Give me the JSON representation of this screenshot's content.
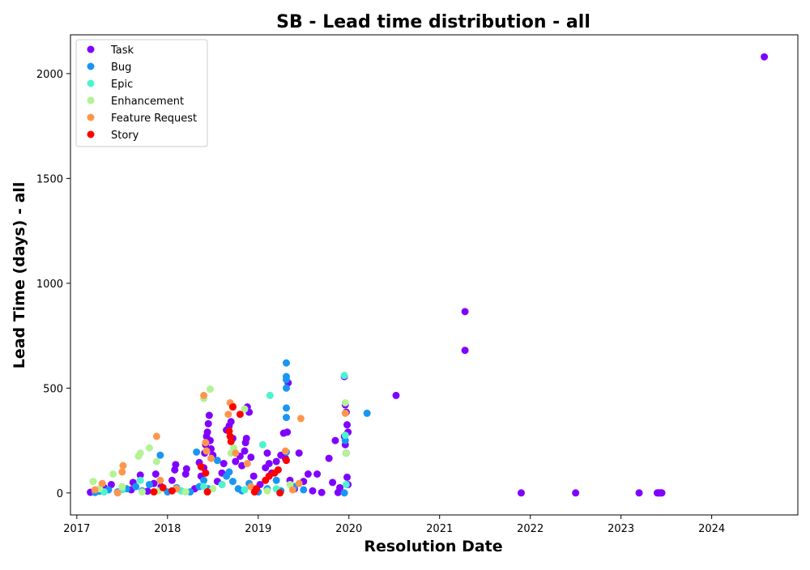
{
  "chart_data": {
    "type": "scatter",
    "title": "SB - Lead time distribution - all",
    "xlabel": "Resolution Date",
    "ylabel": "Lead Time (days) - all",
    "xlim": [
      2016.93,
      2024.95
    ],
    "ylim": [
      -105,
      2185
    ],
    "xticks": [
      2017,
      2018,
      2019,
      2020,
      2021,
      2022,
      2023,
      2024
    ],
    "yticks": [
      0,
      500,
      1000,
      1500,
      2000
    ],
    "grid": false,
    "legend_position": "top-left",
    "series": [
      {
        "name": "Task",
        "color": "#8000ff",
        "points": [
          [
            2017.15,
            3
          ],
          [
            2017.22,
            10
          ],
          [
            2017.3,
            25
          ],
          [
            2017.38,
            40
          ],
          [
            2017.45,
            2
          ],
          [
            2017.6,
            15
          ],
          [
            2017.62,
            50
          ],
          [
            2017.7,
            85
          ],
          [
            2017.78,
            8
          ],
          [
            2017.85,
            45
          ],
          [
            2017.87,
            90
          ],
          [
            2017.93,
            30
          ],
          [
            2018.05,
            60
          ],
          [
            2018.08,
            110
          ],
          [
            2018.09,
            135
          ],
          [
            2018.2,
            90
          ],
          [
            2018.21,
            115
          ],
          [
            2018.3,
            20
          ],
          [
            2018.35,
            145
          ],
          [
            2018.37,
            80
          ],
          [
            2018.4,
            120
          ],
          [
            2018.41,
            190
          ],
          [
            2018.42,
            230
          ],
          [
            2018.43,
            270
          ],
          [
            2018.44,
            290
          ],
          [
            2018.45,
            330
          ],
          [
            2018.46,
            370
          ],
          [
            2018.47,
            250
          ],
          [
            2018.48,
            210
          ],
          [
            2018.5,
            180
          ],
          [
            2018.55,
            55
          ],
          [
            2018.6,
            95
          ],
          [
            2018.62,
            140
          ],
          [
            2018.65,
            300
          ],
          [
            2018.68,
            320
          ],
          [
            2018.7,
            340
          ],
          [
            2018.72,
            260
          ],
          [
            2018.75,
            150
          ],
          [
            2018.8,
            175
          ],
          [
            2018.82,
            130
          ],
          [
            2018.85,
            200
          ],
          [
            2018.86,
            240
          ],
          [
            2018.87,
            260
          ],
          [
            2018.88,
            410
          ],
          [
            2018.9,
            385
          ],
          [
            2018.92,
            170
          ],
          [
            2018.95,
            80
          ],
          [
            2019.02,
            40
          ],
          [
            2019.08,
            120
          ],
          [
            2019.1,
            190
          ],
          [
            2019.12,
            140
          ],
          [
            2019.15,
            95
          ],
          [
            2019.2,
            150
          ],
          [
            2019.25,
            180
          ],
          [
            2019.28,
            285
          ],
          [
            2019.3,
            165
          ],
          [
            2019.32,
            290
          ],
          [
            2019.33,
            525
          ],
          [
            2019.35,
            60
          ],
          [
            2019.4,
            20
          ],
          [
            2019.45,
            190
          ],
          [
            2019.5,
            55
          ],
          [
            2019.55,
            90
          ],
          [
            2019.6,
            10
          ],
          [
            2019.65,
            90
          ],
          [
            2019.7,
            2
          ],
          [
            2019.78,
            165
          ],
          [
            2019.82,
            50
          ],
          [
            2019.85,
            250
          ],
          [
            2019.88,
            2
          ],
          [
            2019.9,
            25
          ],
          [
            2019.95,
            555
          ],
          [
            2019.96,
            420
          ],
          [
            2019.97,
            385
          ],
          [
            2019.98,
            325
          ],
          [
            2019.99,
            290
          ],
          [
            2019.95,
            270
          ],
          [
            2019.96,
            230
          ],
          [
            2019.97,
            190
          ],
          [
            2019.98,
            75
          ],
          [
            2019.99,
            40
          ],
          [
            2020.52,
            465
          ],
          [
            2021.28,
            865
          ],
          [
            2021.28,
            680
          ],
          [
            2021.9,
            0
          ],
          [
            2022.5,
            0
          ],
          [
            2023.2,
            0
          ],
          [
            2023.4,
            0
          ],
          [
            2023.41,
            0
          ],
          [
            2023.42,
            0
          ],
          [
            2023.43,
            0
          ],
          [
            2023.44,
            0
          ],
          [
            2023.45,
            0
          ],
          [
            2024.58,
            2080
          ]
        ]
      },
      {
        "name": "Bug",
        "color": "#1996f3",
        "points": [
          [
            2017.2,
            2
          ],
          [
            2017.25,
            8
          ],
          [
            2017.35,
            15
          ],
          [
            2017.45,
            5
          ],
          [
            2017.55,
            20
          ],
          [
            2017.65,
            30
          ],
          [
            2017.72,
            10
          ],
          [
            2017.8,
            40
          ],
          [
            2017.92,
            180
          ],
          [
            2018.0,
            5
          ],
          [
            2018.1,
            25
          ],
          [
            2018.15,
            10
          ],
          [
            2018.25,
            5
          ],
          [
            2018.32,
            195
          ],
          [
            2018.35,
            30
          ],
          [
            2018.4,
            60
          ],
          [
            2018.45,
            20
          ],
          [
            2018.55,
            155
          ],
          [
            2018.6,
            40
          ],
          [
            2018.65,
            80
          ],
          [
            2018.68,
            100
          ],
          [
            2018.72,
            55
          ],
          [
            2018.78,
            20
          ],
          [
            2018.82,
            10
          ],
          [
            2018.9,
            45
          ],
          [
            2019.0,
            5
          ],
          [
            2019.1,
            20
          ],
          [
            2019.2,
            60
          ],
          [
            2019.25,
            10
          ],
          [
            2019.31,
            620
          ],
          [
            2019.31,
            555
          ],
          [
            2019.31,
            540
          ],
          [
            2019.31,
            500
          ],
          [
            2019.31,
            405
          ],
          [
            2019.31,
            360
          ],
          [
            2019.31,
            195
          ],
          [
            2019.4,
            30
          ],
          [
            2019.5,
            15
          ],
          [
            2019.95,
            0
          ],
          [
            2019.96,
            250
          ],
          [
            2020.2,
            380
          ]
        ]
      },
      {
        "name": "Epic",
        "color": "#4df3ce",
        "points": [
          [
            2017.3,
            5
          ],
          [
            2017.5,
            15
          ],
          [
            2017.7,
            60
          ],
          [
            2018.15,
            10
          ],
          [
            2018.4,
            30
          ],
          [
            2018.6,
            40
          ],
          [
            2018.85,
            15
          ],
          [
            2019.05,
            230
          ],
          [
            2019.13,
            465
          ],
          [
            2019.2,
            20
          ],
          [
            2019.95,
            560
          ],
          [
            2019.96,
            275
          ],
          [
            2019.97,
            40
          ]
        ]
      },
      {
        "name": "Enhancement",
        "color": "#b2f396",
        "points": [
          [
            2017.18,
            55
          ],
          [
            2017.25,
            20
          ],
          [
            2017.4,
            90
          ],
          [
            2017.5,
            30
          ],
          [
            2017.68,
            175
          ],
          [
            2017.7,
            190
          ],
          [
            2017.8,
            215
          ],
          [
            2017.88,
            150
          ],
          [
            2017.72,
            5
          ],
          [
            2017.9,
            10
          ],
          [
            2018.2,
            5
          ],
          [
            2018.4,
            450
          ],
          [
            2018.47,
            495
          ],
          [
            2018.5,
            20
          ],
          [
            2018.7,
            190
          ],
          [
            2018.73,
            215
          ],
          [
            2018.85,
            400
          ],
          [
            2019.1,
            10
          ],
          [
            2019.35,
            40
          ],
          [
            2019.96,
            430
          ],
          [
            2019.97,
            190
          ]
        ]
      },
      {
        "name": "Feature Request",
        "color": "#ff964f",
        "points": [
          [
            2017.2,
            15
          ],
          [
            2017.28,
            45
          ],
          [
            2017.45,
            0
          ],
          [
            2017.5,
            100
          ],
          [
            2017.51,
            130
          ],
          [
            2017.88,
            270
          ],
          [
            2017.92,
            60
          ],
          [
            2018.1,
            20
          ],
          [
            2018.4,
            465
          ],
          [
            2018.42,
            240
          ],
          [
            2018.43,
            200
          ],
          [
            2018.48,
            165
          ],
          [
            2018.67,
            375
          ],
          [
            2018.69,
            430
          ],
          [
            2018.72,
            415
          ],
          [
            2018.75,
            190
          ],
          [
            2018.88,
            140
          ],
          [
            2018.92,
            30
          ],
          [
            2019.3,
            200
          ],
          [
            2019.38,
            15
          ],
          [
            2019.45,
            45
          ],
          [
            2019.47,
            355
          ],
          [
            2019.96,
            380
          ]
        ]
      },
      {
        "name": "Story",
        "color": "#ff0000",
        "points": [
          [
            2017.85,
            5
          ],
          [
            2017.95,
            25
          ],
          [
            2018.05,
            10
          ],
          [
            2018.37,
            125
          ],
          [
            2018.42,
            95
          ],
          [
            2018.44,
            5
          ],
          [
            2018.68,
            295
          ],
          [
            2018.69,
            270
          ],
          [
            2018.7,
            245
          ],
          [
            2018.72,
            410
          ],
          [
            2018.8,
            375
          ],
          [
            2018.96,
            5
          ],
          [
            2018.98,
            20
          ],
          [
            2019.08,
            60
          ],
          [
            2019.12,
            80
          ],
          [
            2019.18,
            95
          ],
          [
            2019.22,
            110
          ],
          [
            2019.24,
            0
          ],
          [
            2019.31,
            155
          ]
        ]
      }
    ]
  }
}
